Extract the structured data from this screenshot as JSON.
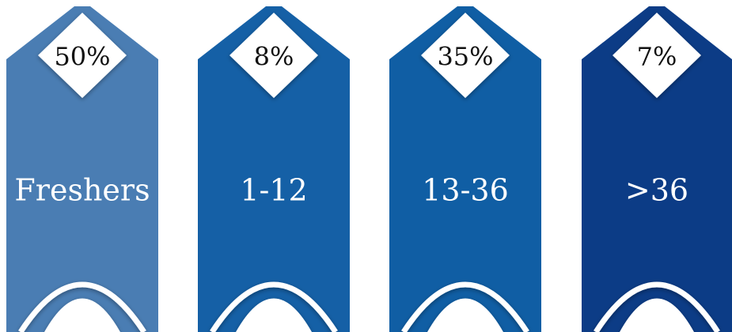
{
  "items": [
    {
      "percent": "50%",
      "label": "Freshers",
      "color": "#4a7db3"
    },
    {
      "percent": "8%",
      "label": "1-12",
      "color": "#1560a6"
    },
    {
      "percent": "35%",
      "label": "13-36",
      "color": "#105ea4"
    },
    {
      "percent": "7%",
      "label": ">36",
      "color": "#0c3c86"
    }
  ]
}
